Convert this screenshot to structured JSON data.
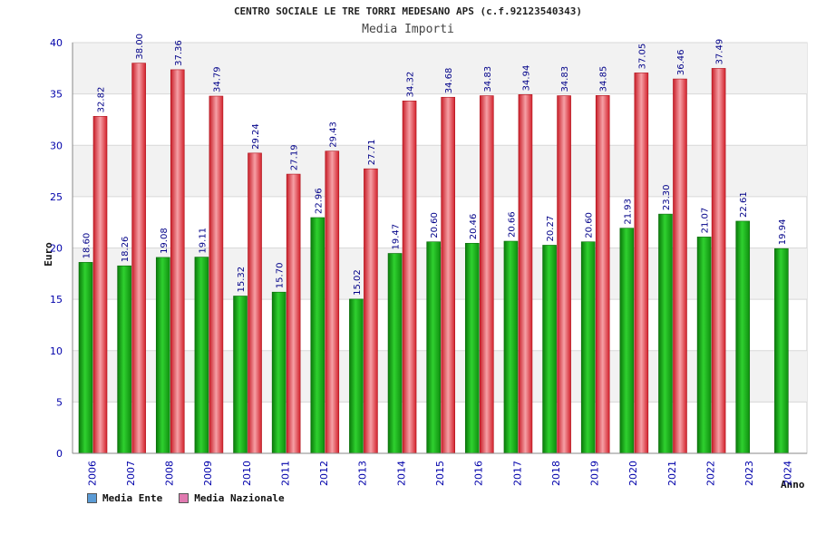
{
  "chart_data": {
    "type": "bar",
    "title": "CENTRO SOCIALE LE TRE TORRI MEDESANO APS (c.f.92123540343)",
    "subtitle": "Media Importi",
    "xlabel": "Anno",
    "ylabel": "Euro",
    "ylim": [
      0,
      40
    ],
    "yticks": [
      0,
      5,
      10,
      15,
      20,
      25,
      30,
      35,
      40
    ],
    "categories": [
      "2006",
      "2007",
      "2008",
      "2009",
      "2010",
      "2011",
      "2012",
      "2013",
      "2014",
      "2015",
      "2016",
      "2017",
      "2018",
      "2019",
      "2020",
      "2021",
      "2022",
      "2023",
      "2024"
    ],
    "series": [
      {
        "name": "Media Ente",
        "color": "#22b322",
        "legend_color": "#5b9bd5",
        "values": [
          18.6,
          18.26,
          19.08,
          19.11,
          15.32,
          15.7,
          22.96,
          15.02,
          19.47,
          20.6,
          20.46,
          20.66,
          20.27,
          20.6,
          21.93,
          23.3,
          21.07,
          22.61,
          19.94
        ],
        "labels": [
          "18.60",
          "18.26",
          "19.08",
          "19.11",
          "15.32",
          "15.70",
          "22.96",
          "15.02",
          "19.47",
          "20.60",
          "20.46",
          "20.66",
          "20.27",
          "20.60",
          "21.93",
          "23.30",
          "21.07",
          "22.61",
          "19.94"
        ]
      },
      {
        "name": "Media Nazionale",
        "color": "#e8323c",
        "legend_color": "#e07ab0",
        "values": [
          32.82,
          38.0,
          37.36,
          34.79,
          29.24,
          27.19,
          29.43,
          27.71,
          34.32,
          34.68,
          34.83,
          34.94,
          34.83,
          34.85,
          37.05,
          36.46,
          37.49,
          null,
          null
        ],
        "labels": [
          "32.82",
          "38.00",
          "37.36",
          "34.79",
          "29.24",
          "27.19",
          "29.43",
          "27.71",
          "34.32",
          "34.68",
          "34.83",
          "34.94",
          "34.83",
          "34.85",
          "37.05",
          "36.46",
          "37.49",
          null,
          null
        ]
      }
    ],
    "grid": true,
    "legend_position": "bottom-left"
  }
}
